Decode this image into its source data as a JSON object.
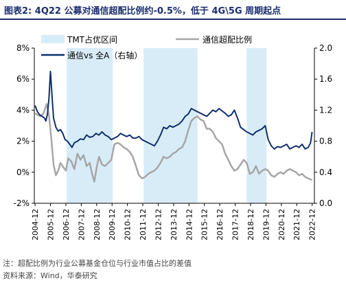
{
  "title": "图表2:  4Q22 公募对通信超配比例约-0.5%，低于 4G\\5G 周期起点",
  "notes": [
    "注：超配比例为行业公募基金仓位与行业市值占比的差值",
    "资料来源：Wind，华泰研究"
  ],
  "colors": {
    "navy": "#0e2e6e",
    "gray": "#a6a6a6",
    "band": "#d8ecf8",
    "title": "#1a2e6e"
  },
  "chart_data": {
    "type": "line",
    "legend": [
      {
        "name": "TMT占优区间",
        "kind": "band"
      },
      {
        "name": "通信超配比例",
        "kind": "line",
        "color": "#a6a6a6"
      },
      {
        "name": "通信vs 全A（右轴）",
        "kind": "line",
        "color": "#0e2e6e"
      }
    ],
    "legend_placement": "top",
    "grid": false,
    "x_ticks": [
      "2004-12",
      "2005-12",
      "2006-12",
      "2007-12",
      "2008-12",
      "2009-12",
      "2010-12",
      "2011-12",
      "2012-12",
      "2013-12",
      "2014-12",
      "2015-12",
      "2016-12",
      "2017-12",
      "2018-12",
      "2019-12",
      "2020-12",
      "2021-12",
      "2022-12"
    ],
    "y_left": {
      "lim": [
        -0.02,
        0.08
      ],
      "ticks": [
        "-2%",
        "0%",
        "2%",
        "4%",
        "6%",
        "8%"
      ]
    },
    "y_right": {
      "lim": [
        0.0,
        2.0
      ],
      "ticks": [
        "0.0",
        "0.4",
        "0.8",
        "1.2",
        "1.6",
        "2.0"
      ]
    },
    "bands": [
      [
        2007.0,
        2010.0
      ],
      [
        2012.0,
        2015.5
      ],
      [
        2018.7,
        2020.0
      ]
    ],
    "series": [
      {
        "name": "通信超配比例",
        "axis": "left",
        "x": [
          2004.95,
          2005.1,
          2005.3,
          2005.5,
          2005.7,
          2005.85,
          2006.0,
          2006.15,
          2006.3,
          2006.45,
          2006.6,
          2006.8,
          2006.95,
          2007.1,
          2007.3,
          2007.5,
          2007.7,
          2007.9,
          2008.1,
          2008.3,
          2008.5,
          2008.65,
          2008.8,
          2008.95,
          2009.1,
          2009.3,
          2009.5,
          2009.7,
          2009.9,
          2010.1,
          2010.3,
          2010.5,
          2010.7,
          2010.9,
          2011.1,
          2011.3,
          2011.5,
          2011.7,
          2011.9,
          2012.1,
          2012.3,
          2012.5,
          2012.7,
          2012.9,
          2013.1,
          2013.3,
          2013.5,
          2013.7,
          2013.9,
          2014.1,
          2014.3,
          2014.5,
          2014.7,
          2014.9,
          2015.1,
          2015.3,
          2015.5,
          2015.7,
          2015.9,
          2016.1,
          2016.3,
          2016.5,
          2016.7,
          2016.9,
          2017.1,
          2017.3,
          2017.5,
          2017.7,
          2017.9,
          2018.1,
          2018.3,
          2018.5,
          2018.7,
          2018.9,
          2019.1,
          2019.3,
          2019.5,
          2019.7,
          2019.9,
          2020.1,
          2020.3,
          2020.5,
          2020.7,
          2020.9,
          2021.1,
          2021.3,
          2021.5,
          2021.7,
          2021.9,
          2022.1,
          2022.3,
          2022.5,
          2022.7,
          2022.95
        ],
        "y": [
          0.038,
          0.037,
          0.036,
          0.038,
          0.044,
          0.037,
          0.022,
          0.005,
          -0.002,
          0.001,
          0.006,
          0.003,
          0.001,
          0.009,
          0.007,
          0.002,
          0.012,
          0.008,
          0.011,
          0.004,
          0.006,
          -0.001,
          -0.006,
          0.003,
          0.01,
          0.005,
          0.004,
          0.006,
          0.008,
          0.018,
          0.019,
          0.018,
          0.016,
          0.015,
          0.013,
          0.01,
          0.004,
          -0.002,
          -0.004,
          -0.003,
          -0.001,
          0.0,
          0.001,
          0.003,
          0.006,
          0.01,
          0.009,
          0.01,
          0.012,
          0.013,
          0.015,
          0.016,
          0.02,
          0.027,
          0.033,
          0.035,
          0.036,
          0.034,
          0.033,
          0.028,
          0.028,
          0.026,
          0.022,
          0.02,
          0.018,
          0.012,
          0.008,
          0.004,
          0.001,
          0.002,
          0.005,
          0.008,
          0.006,
          -0.001,
          0.0,
          0.004,
          -0.001,
          0.001,
          0.002,
          0.001,
          -0.002,
          -0.003,
          -0.001,
          0.0,
          -0.001,
          0.001,
          0.002,
          0.001,
          0.0,
          -0.002,
          -0.001,
          -0.003,
          -0.004,
          -0.005
        ]
      },
      {
        "name": "通信vs 全A（右轴）",
        "axis": "right",
        "x": [
          2004.95,
          2005.1,
          2005.25,
          2005.4,
          2005.55,
          2005.65,
          2005.75,
          2005.85,
          2005.95,
          2006.05,
          2006.15,
          2006.3,
          2006.45,
          2006.6,
          2006.75,
          2006.9,
          2007.05,
          2007.2,
          2007.35,
          2007.5,
          2007.7,
          2007.9,
          2008.1,
          2008.3,
          2008.5,
          2008.7,
          2008.9,
          2009.1,
          2009.3,
          2009.5,
          2009.7,
          2009.9,
          2010.1,
          2010.3,
          2010.5,
          2010.7,
          2010.9,
          2011.1,
          2011.3,
          2011.5,
          2011.7,
          2011.9,
          2012.1,
          2012.3,
          2012.5,
          2012.7,
          2012.9,
          2013.1,
          2013.3,
          2013.5,
          2013.7,
          2013.9,
          2014.1,
          2014.3,
          2014.5,
          2014.7,
          2014.9,
          2015.1,
          2015.3,
          2015.5,
          2015.7,
          2015.9,
          2016.1,
          2016.3,
          2016.5,
          2016.7,
          2016.9,
          2017.1,
          2017.3,
          2017.5,
          2017.7,
          2017.9,
          2018.1,
          2018.3,
          2018.5,
          2018.7,
          2018.9,
          2019.1,
          2019.3,
          2019.5,
          2019.7,
          2019.9,
          2020.1,
          2020.3,
          2020.5,
          2020.7,
          2020.9,
          2021.1,
          2021.3,
          2021.5,
          2021.7,
          2021.9,
          2022.1,
          2022.3,
          2022.5,
          2022.7,
          2022.85,
          2022.95
        ],
        "y": [
          1.26,
          1.18,
          1.14,
          1.12,
          1.1,
          1.06,
          1.15,
          1.35,
          1.7,
          1.38,
          1.1,
          0.98,
          0.93,
          0.95,
          0.9,
          0.82,
          0.8,
          0.76,
          0.72,
          0.78,
          0.8,
          0.83,
          0.82,
          0.88,
          0.85,
          0.86,
          0.9,
          0.88,
          0.92,
          0.88,
          0.86,
          0.82,
          0.84,
          0.86,
          0.9,
          0.88,
          0.86,
          0.88,
          0.84,
          0.84,
          0.86,
          0.82,
          0.8,
          0.78,
          0.76,
          0.74,
          0.8,
          0.88,
          0.98,
          0.96,
          1.0,
          0.98,
          1.0,
          1.02,
          1.06,
          1.12,
          1.15,
          1.22,
          1.2,
          1.18,
          1.16,
          1.14,
          1.12,
          1.16,
          1.2,
          1.18,
          1.22,
          1.19,
          1.16,
          1.12,
          1.14,
          1.2,
          1.1,
          0.98,
          0.95,
          0.92,
          0.9,
          0.88,
          0.92,
          0.94,
          0.96,
          1.0,
          0.82,
          0.74,
          0.7,
          0.73,
          0.72,
          0.74,
          0.76,
          0.7,
          0.72,
          0.74,
          0.72,
          0.76,
          0.7,
          0.72,
          0.78,
          0.92
        ]
      }
    ]
  }
}
